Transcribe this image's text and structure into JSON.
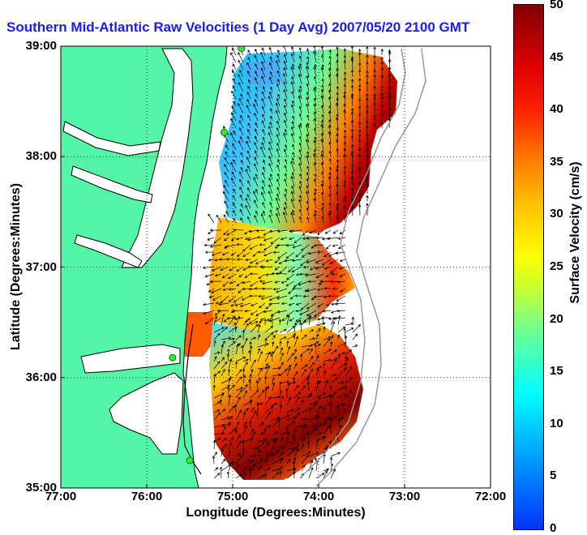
{
  "title": "Southern Mid-Atlantic Raw Velocities (1 Day Avg) 2007/05/20 2100 GMT",
  "chart_data": {
    "type": "heatmap",
    "title": "Southern Mid-Atlantic Raw Velocities (1 Day Avg) 2007/05/20 2100 GMT",
    "xlabel": "Longitude (Degrees:Minutes)",
    "ylabel": "Latitude (Degrees:Minutes)",
    "x_ticks": [
      "77:00",
      "76:00",
      "75:00",
      "74:00",
      "73:00",
      "72:00"
    ],
    "y_ticks": [
      "39:00",
      "38:00",
      "37:00",
      "36:00",
      "35:00"
    ],
    "xlim": [
      -77.0,
      -72.0
    ],
    "ylim": [
      35.0,
      39.0
    ],
    "grid": true,
    "colorbar": {
      "label": "Surface Velocity (cm/s)",
      "ticks": [
        "0",
        "5",
        "10",
        "15",
        "20",
        "25",
        "30",
        "35",
        "40",
        "45",
        "50"
      ],
      "range": [
        0,
        50
      ]
    },
    "colors": {
      "land": "#55f5a8",
      "coast": "#000000",
      "station": "#33ee33"
    },
    "stations": [
      {
        "lon": -74.9,
        "lat": 38.98
      },
      {
        "lon": -75.1,
        "lat": 38.22
      },
      {
        "lon": -75.7,
        "lat": 36.18
      },
      {
        "lon": -75.5,
        "lat": 35.25
      }
    ]
  }
}
